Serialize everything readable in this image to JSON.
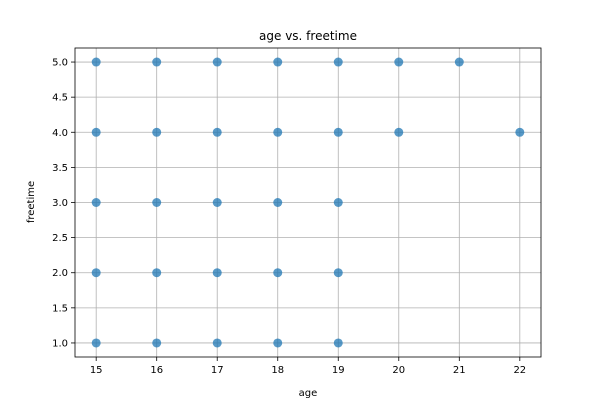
{
  "chart_data": {
    "type": "scatter",
    "title": "age vs. freetime",
    "xlabel": "age",
    "ylabel": "freetime",
    "xlim": [
      14.65,
      22.35
    ],
    "ylim": [
      0.8,
      5.2
    ],
    "xticks": [
      15,
      16,
      17,
      18,
      19,
      20,
      21,
      22
    ],
    "yticks": [
      1.0,
      1.5,
      2.0,
      2.5,
      3.0,
      3.5,
      4.0,
      4.5,
      5.0
    ],
    "ytick_labels": [
      "1.0",
      "1.5",
      "2.0",
      "2.5",
      "3.0",
      "3.5",
      "4.0",
      "4.5",
      "5.0"
    ],
    "grid": true,
    "point_color": "#1f77b4",
    "points": [
      {
        "x": 15,
        "y": 1
      },
      {
        "x": 15,
        "y": 2
      },
      {
        "x": 15,
        "y": 3
      },
      {
        "x": 15,
        "y": 4
      },
      {
        "x": 15,
        "y": 5
      },
      {
        "x": 16,
        "y": 1
      },
      {
        "x": 16,
        "y": 2
      },
      {
        "x": 16,
        "y": 3
      },
      {
        "x": 16,
        "y": 4
      },
      {
        "x": 16,
        "y": 5
      },
      {
        "x": 17,
        "y": 1
      },
      {
        "x": 17,
        "y": 2
      },
      {
        "x": 17,
        "y": 3
      },
      {
        "x": 17,
        "y": 4
      },
      {
        "x": 17,
        "y": 5
      },
      {
        "x": 18,
        "y": 1
      },
      {
        "x": 18,
        "y": 2
      },
      {
        "x": 18,
        "y": 3
      },
      {
        "x": 18,
        "y": 4
      },
      {
        "x": 18,
        "y": 5
      },
      {
        "x": 19,
        "y": 1
      },
      {
        "x": 19,
        "y": 2
      },
      {
        "x": 19,
        "y": 3
      },
      {
        "x": 19,
        "y": 4
      },
      {
        "x": 19,
        "y": 5
      },
      {
        "x": 20,
        "y": 4
      },
      {
        "x": 20,
        "y": 5
      },
      {
        "x": 21,
        "y": 5
      },
      {
        "x": 22,
        "y": 4
      }
    ]
  }
}
